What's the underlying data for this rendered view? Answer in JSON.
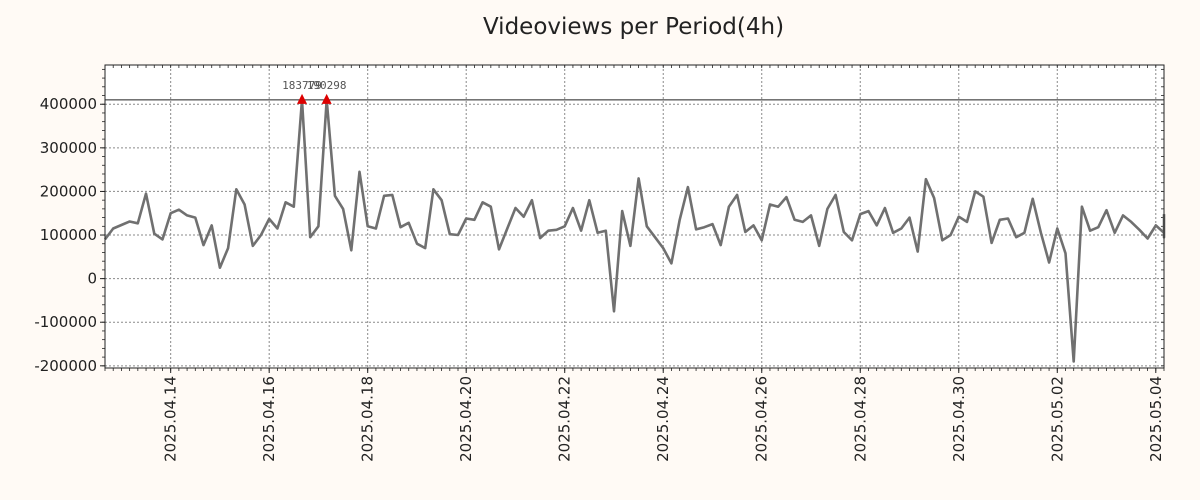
{
  "chart_data": {
    "type": "line",
    "title": "Videoviews per Period(4h)",
    "xlabel": "",
    "ylabel": "",
    "x_start": "2025-04-12 16:00",
    "x_step_hours": 4,
    "xlim": [
      "2025-04-12 16:00",
      "2025-05-04 04:00"
    ],
    "ylim": [
      -205000,
      490000
    ],
    "yticks": [
      -200000,
      -100000,
      0,
      100000,
      200000,
      300000,
      400000
    ],
    "ytick_labels": [
      "-200000",
      "-100000",
      "0",
      "100000",
      "200000",
      "300000",
      "400000"
    ],
    "xticks": [
      "2025-04-14",
      "2025-04-16",
      "2025-04-18",
      "2025-04-20",
      "2025-04-22",
      "2025-04-24",
      "2025-04-26",
      "2025-04-28",
      "2025-04-30",
      "2025-05-02",
      "2025-05-04"
    ],
    "xtick_labels": [
      "2025.04.14",
      "2025.04.16",
      "2025.04.18",
      "2025.04.20",
      "2025.04.22",
      "2025.04.24",
      "2025.04.26",
      "2025.04.28",
      "2025.04.30",
      "2025.05.02",
      "2025.05.04"
    ],
    "grid": true,
    "reference_line": 410000,
    "series": [
      {
        "color": "#707070",
        "values": [
          90000,
          115000,
          123000,
          131000,
          127000,
          195000,
          103000,
          90000,
          150000,
          158000,
          145000,
          140000,
          77000,
          122000,
          25000,
          70000,
          205000,
          170000,
          75000,
          100000,
          137000,
          115000,
          175000,
          165000,
          410000,
          95000,
          120000,
          410000,
          190000,
          160000,
          65000,
          245000,
          120000,
          115000,
          190000,
          192000,
          118000,
          128000,
          80000,
          70000,
          205000,
          180000,
          102000,
          100000,
          138000,
          135000,
          175000,
          165000,
          67000,
          115000,
          162000,
          142000,
          180000,
          93000,
          110000,
          112000,
          120000,
          162000,
          110000,
          180000,
          105000,
          110000,
          -75000,
          155000,
          75000,
          230000,
          120000,
          95000,
          70000,
          35000,
          135000,
          210000,
          113000,
          118000,
          125000,
          77000,
          165000,
          192000,
          107000,
          122000,
          88000,
          170000,
          165000,
          187000,
          135000,
          130000,
          145000,
          75000,
          160000,
          192000,
          107000,
          88000,
          148000,
          155000,
          122000,
          162000,
          105000,
          115000,
          140000,
          62000,
          228000,
          185000,
          88000,
          100000,
          142000,
          130000,
          200000,
          188000,
          82000,
          135000,
          138000,
          95000,
          105000,
          183000,
          105000,
          37000,
          115000,
          58000,
          -190000,
          165000,
          110000,
          118000,
          157000,
          105000,
          145000,
          130000,
          112000,
          92000,
          122000,
          105000,
          95000,
          148000
        ]
      }
    ],
    "peaks": [
      {
        "index": 24,
        "value": 410000,
        "label": "183779"
      },
      {
        "index": 27,
        "value": 410000,
        "label": "190298"
      }
    ],
    "peak_marker_color": "#dd0000"
  }
}
